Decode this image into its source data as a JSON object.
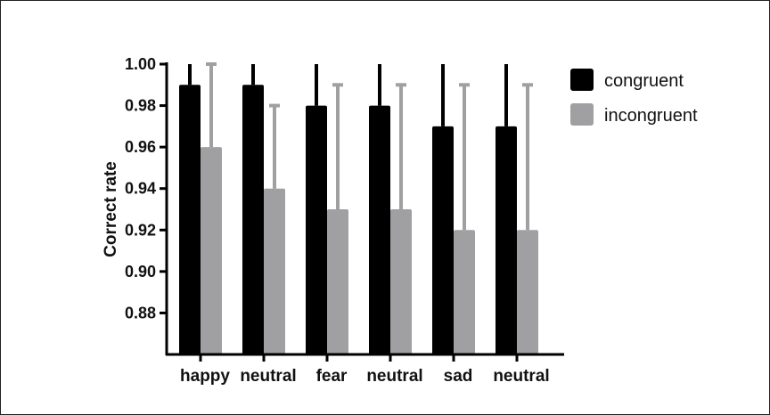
{
  "chart_data": {
    "type": "bar",
    "categories": [
      "happy",
      "neutral",
      "fear",
      "neutral",
      "sad",
      "neutral"
    ],
    "series": [
      {
        "name": "congruent",
        "color": "#000000",
        "values": [
          0.99,
          0.99,
          0.98,
          0.98,
          0.97,
          0.97
        ],
        "error_upper": [
          1.0,
          1.0,
          1.0,
          1.0,
          1.0,
          1.0
        ]
      },
      {
        "name": "incongruent",
        "color": "#a0a0a2",
        "values": [
          0.96,
          0.94,
          0.93,
          0.93,
          0.92,
          0.92
        ],
        "error_upper": [
          1.0,
          0.98,
          0.99,
          0.99,
          0.99,
          0.99
        ]
      }
    ],
    "xlabel": "",
    "ylabel": "Correct rate",
    "ylim": [
      0.86,
      1.0
    ],
    "yticks": [
      "0.88",
      "0.90",
      "0.92",
      "0.94",
      "0.96",
      "0.98",
      "1.00"
    ],
    "grid": false,
    "legend_position": "top-right"
  }
}
